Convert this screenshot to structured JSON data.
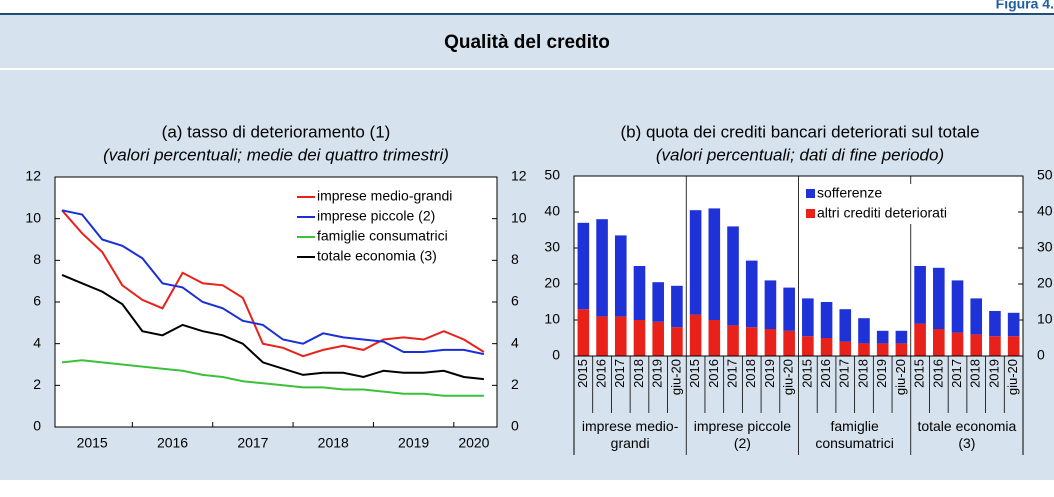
{
  "figure_label": "Figura 4.",
  "title": "Qualità del credito",
  "chart_data": [
    {
      "type": "line",
      "title": "(a) tasso di deterioramento (1)",
      "subtitle": "(valori percentuali; medie dei quattro trimestri)",
      "categories": [
        "2015",
        null,
        null,
        null,
        "2016",
        null,
        null,
        null,
        "2017",
        null,
        null,
        null,
        "2018",
        null,
        null,
        null,
        "2019",
        null,
        null,
        null,
        "2020",
        null
      ],
      "series": [
        {
          "name": "imprese medio-grandi",
          "color": "#e8211b",
          "values": [
            10.4,
            9.3,
            8.4,
            6.8,
            6.1,
            5.7,
            7.4,
            6.9,
            6.8,
            6.2,
            4.0,
            3.8,
            3.4,
            3.7,
            3.9,
            3.7,
            4.2,
            4.3,
            4.2,
            4.6,
            4.2,
            3.6
          ]
        },
        {
          "name": "imprese piccole (2)",
          "color": "#1a2fd8",
          "values": [
            10.4,
            10.2,
            9.0,
            8.7,
            8.1,
            6.9,
            6.7,
            6.0,
            5.7,
            5.1,
            4.9,
            4.2,
            4.0,
            4.5,
            4.3,
            4.2,
            4.1,
            3.6,
            3.6,
            3.7,
            3.7,
            3.5
          ]
        },
        {
          "name": "famiglie consumatrici",
          "color": "#3cc03c",
          "values": [
            3.1,
            3.2,
            3.1,
            3.0,
            2.9,
            2.8,
            2.7,
            2.5,
            2.4,
            2.2,
            2.1,
            2.0,
            1.9,
            1.9,
            1.8,
            1.8,
            1.7,
            1.6,
            1.6,
            1.5,
            1.5,
            1.5
          ]
        },
        {
          "name": "totale economia (3)",
          "color": "#000000",
          "values": [
            7.3,
            6.9,
            6.5,
            5.9,
            4.6,
            4.4,
            4.9,
            4.6,
            4.4,
            4.0,
            3.1,
            2.8,
            2.5,
            2.6,
            2.6,
            2.4,
            2.7,
            2.6,
            2.6,
            2.7,
            2.4,
            2.3
          ]
        }
      ],
      "ylim": [
        0,
        12
      ],
      "yticks": [
        0,
        2,
        4,
        6,
        8,
        10,
        12
      ],
      "y2lim": [
        0,
        12
      ],
      "y2ticks": [
        0,
        2,
        4,
        6,
        8,
        10,
        12
      ],
      "legend": "top-right"
    },
    {
      "type": "stacked-bar",
      "title": "(b) quota dei crediti bancari deteriorati sul totale",
      "subtitle": "(valori percentuali; dati di fine periodo)",
      "categories": [
        "2015",
        "2016",
        "2017",
        "2018",
        "2019",
        "giu-20",
        "2015",
        "2016",
        "2017",
        "2018",
        "2019",
        "giu-20",
        "2015",
        "2016",
        "2017",
        "2018",
        "2019",
        "giu-20",
        "2015",
        "2016",
        "2017",
        "2018",
        "2019",
        "giu-20"
      ],
      "groups": [
        "imprese medio-grandi",
        "imprese piccole (2)",
        "famiglie consumatrici",
        "totale economia (3)"
      ],
      "series": [
        {
          "name": "altri crediti deteriorati",
          "color": "#e8211b",
          "values": [
            13,
            11,
            11,
            10,
            9.5,
            8,
            11.5,
            10,
            8.5,
            8,
            7.5,
            7,
            5.5,
            5,
            4,
            3.5,
            3.5,
            3.5,
            9,
            7.5,
            6.5,
            6,
            5.5,
            5.5
          ]
        },
        {
          "name": "sofferenze",
          "color": "#1e32d8",
          "values": [
            24,
            27,
            22.5,
            15,
            11,
            11.5,
            29,
            31,
            27.5,
            18.5,
            13.5,
            12,
            10.5,
            10,
            9,
            7,
            3.5,
            3.5,
            16,
            17,
            14.5,
            10,
            7,
            6.5
          ]
        }
      ],
      "ylim": [
        0,
        50
      ],
      "yticks": [
        0,
        10,
        20,
        30,
        40,
        50
      ],
      "y2lim": [
        0,
        50
      ],
      "y2ticks": [
        0,
        10,
        20,
        30,
        40,
        50
      ],
      "legend": "top-right"
    }
  ]
}
